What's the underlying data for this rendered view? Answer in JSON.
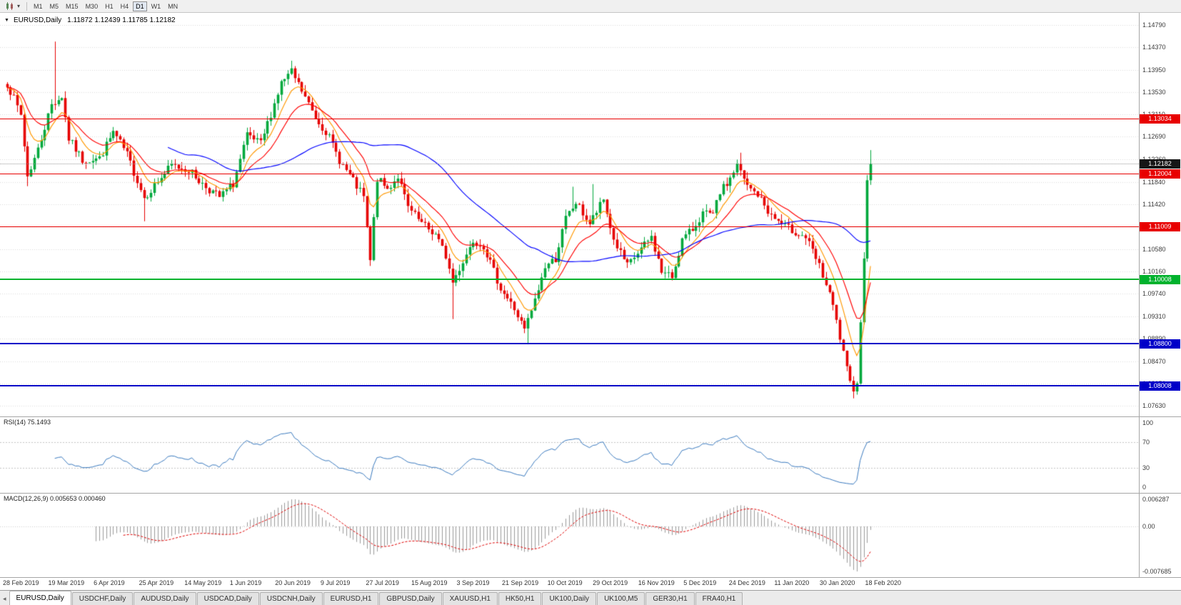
{
  "icons": {
    "dropdown_caret": "▾",
    "one_click_arrow": "▼",
    "tab_scroll_left": "◂"
  },
  "toolbar": {
    "timeframes": [
      "M1",
      "M5",
      "M15",
      "M30",
      "H1",
      "H4",
      "D1",
      "W1",
      "MN"
    ],
    "active_timeframe": "D1"
  },
  "chart_header": {
    "symbol": "EURUSD,Daily",
    "ohlc": "1.11872 1.12439 1.11785 1.12182"
  },
  "price_axis_ticks": [
    "1.14790",
    "1.14370",
    "1.13950",
    "1.13530",
    "1.13110",
    "1.12690",
    "1.12260",
    "1.11840",
    "1.11420",
    "1.11000",
    "1.10580",
    "1.10160",
    "1.09740",
    "1.09310",
    "1.08890",
    "1.08470",
    "1.08050",
    "1.07630"
  ],
  "levels": [
    {
      "label": "1.13034",
      "color": "#e80000",
      "width": 1
    },
    {
      "label": "1.12004",
      "color": "#e80000",
      "width": 1
    },
    {
      "label": "1.11009",
      "color": "#e80000",
      "width": 1
    },
    {
      "label": "1.10008",
      "color": "#00b22d",
      "width": 2
    },
    {
      "label": "1.08800",
      "color": "#0000c8",
      "width": 2
    },
    {
      "label": "1.08008",
      "color": "#0000c8",
      "width": 2
    }
  ],
  "current_price": {
    "label": "1.12182"
  },
  "rsi_panel": {
    "title": "RSI(14) 75.1493",
    "scale": [
      "100",
      "70",
      "30",
      "0"
    ]
  },
  "macd_panel": {
    "title": "MACD(12,26,9) 0.005653 0.000460",
    "scale_top": "0.006287",
    "scale_mid": "0.00",
    "scale_bottom": "-0.007685"
  },
  "date_axis": [
    "28 Feb 2019",
    "19 Mar 2019",
    "6 Apr 2019",
    "25 Apr 2019",
    "14 May 2019",
    "1 Jun 2019",
    "20 Jun 2019",
    "9 Jul 2019",
    "27 Jul 2019",
    "15 Aug 2019",
    "3 Sep 2019",
    "21 Sep 2019",
    "10 Oct 2019",
    "29 Oct 2019",
    "16 Nov 2019",
    "5 Dec 2019",
    "24 Dec 2019",
    "11 Jan 2020",
    "30 Jan 2020",
    "18 Feb 2020"
  ],
  "tabs": {
    "active": "EURUSD,Daily",
    "items": [
      "EURUSD,Daily",
      "USDCHF,Daily",
      "AUDUSD,Daily",
      "USDCAD,Daily",
      "USDCNH,Daily",
      "EURUSD,H1",
      "GBPUSD,Daily",
      "XAUUSD,H1",
      "HK50,H1",
      "UK100,Daily",
      "UK100,M5",
      "GER30,H1",
      "FRA40,H1"
    ],
    "scroll_left_icon": "tab-scroll-left"
  },
  "colors": {
    "bull": "#00a83c",
    "bear": "#e60000",
    "background": "#ffffff",
    "grid": "#dadada",
    "axis_text": "#3a3a3a",
    "badge_current_bg": "#161616",
    "ma_fast": "#ff9800",
    "ma_medium": "#ff0000",
    "ma_slow": "#0000ff",
    "rsi_line": "#3a7abf",
    "macd_histogram": "#9a9a9a",
    "macd_signal": "#e00000"
  },
  "chart_data": {
    "type": "candlestick",
    "symbol": "EURUSD",
    "timeframe": "Daily",
    "title": "EURUSD,Daily 1.11872 1.12439 1.11785 1.12182",
    "last_candle": {
      "open": 1.11872,
      "high": 1.12439,
      "low": 1.11785,
      "close": 1.12182
    },
    "y_axis": {
      "top_price": 1.1502,
      "bottom_price": 1.0743,
      "tick_step": 0.0042
    },
    "candles": 253,
    "close_waypoints": [
      [
        0,
        1.137
      ],
      [
        4,
        1.131
      ],
      [
        6,
        1.1195
      ],
      [
        9,
        1.1245
      ],
      [
        13,
        1.133
      ],
      [
        16,
        1.1345
      ],
      [
        18,
        1.1265
      ],
      [
        22,
        1.1225
      ],
      [
        27,
        1.1228
      ],
      [
        31,
        1.1278
      ],
      [
        35,
        1.1235
      ],
      [
        40,
        1.1155
      ],
      [
        44,
        1.1185
      ],
      [
        48,
        1.1215
      ],
      [
        53,
        1.1207
      ],
      [
        57,
        1.118
      ],
      [
        62,
        1.1155
      ],
      [
        66,
        1.118
      ],
      [
        70,
        1.127
      ],
      [
        74,
        1.1255
      ],
      [
        80,
        1.137
      ],
      [
        83,
        1.139
      ],
      [
        86,
        1.1355
      ],
      [
        90,
        1.1305
      ],
      [
        93,
        1.128
      ],
      [
        97,
        1.1225
      ],
      [
        101,
        1.1185
      ],
      [
        104,
        1.1155
      ],
      [
        106,
        1.1035
      ],
      [
        108,
        1.119
      ],
      [
        111,
        1.117
      ],
      [
        114,
        1.1195
      ],
      [
        117,
        1.1135
      ],
      [
        121,
        1.1105
      ],
      [
        125,
        1.1085
      ],
      [
        128,
        1.1045
      ],
      [
        130,
        1.0995
      ],
      [
        133,
        1.1035
      ],
      [
        136,
        1.1075
      ],
      [
        139,
        1.1065
      ],
      [
        142,
        1.1015
      ],
      [
        144,
        1.0985
      ],
      [
        148,
        1.0945
      ],
      [
        151,
        1.0905
      ],
      [
        154,
        1.096
      ],
      [
        157,
        1.1025
      ],
      [
        160,
        1.104
      ],
      [
        163,
        1.1115
      ],
      [
        166,
        1.1145
      ],
      [
        170,
        1.1105
      ],
      [
        174,
        1.115
      ],
      [
        177,
        1.1075
      ],
      [
        181,
        1.1025
      ],
      [
        184,
        1.105
      ],
      [
        188,
        1.108
      ],
      [
        191,
        1.1015
      ],
      [
        194,
        1.1005
      ],
      [
        197,
        1.1075
      ],
      [
        200,
        1.1095
      ],
      [
        203,
        1.1125
      ],
      [
        206,
        1.112
      ],
      [
        208,
        1.1165
      ],
      [
        210,
        1.118
      ],
      [
        213,
        1.1215
      ],
      [
        216,
        1.1175
      ],
      [
        219,
        1.116
      ],
      [
        223,
        1.112
      ],
      [
        227,
        1.11
      ],
      [
        230,
        1.109
      ],
      [
        233,
        1.108
      ],
      [
        237,
        1.1025
      ],
      [
        239,
        1.099
      ],
      [
        241,
        1.095
      ],
      [
        243,
        1.089
      ],
      [
        245,
        1.083
      ],
      [
        247,
        1.079
      ],
      [
        248,
        1.0805
      ],
      [
        249,
        1.092
      ],
      [
        250,
        1.104
      ],
      [
        251,
        1.11872
      ],
      [
        252,
        1.12182
      ]
    ],
    "wick_extremes": [
      {
        "i": 6,
        "low": 1.1176
      },
      {
        "i": 14,
        "high": 1.1448
      },
      {
        "i": 40,
        "low": 1.111
      },
      {
        "i": 83,
        "high": 1.1412
      },
      {
        "i": 106,
        "low": 1.1026
      },
      {
        "i": 130,
        "low": 1.0926
      },
      {
        "i": 152,
        "low": 1.0879
      },
      {
        "i": 165,
        "high": 1.1175
      },
      {
        "i": 171,
        "high": 1.118
      },
      {
        "i": 214,
        "high": 1.1239
      },
      {
        "i": 247,
        "low": 1.0777
      }
    ],
    "overlays": [
      {
        "name": "ema-fast",
        "period": 8,
        "color": "#ff9800"
      },
      {
        "name": "ema-medium",
        "period": 17,
        "color": "#ff0000"
      },
      {
        "name": "sma-slow",
        "period": 48,
        "color": "#0000ff"
      }
    ],
    "horizontal_levels": [
      1.13034,
      1.12004,
      1.11009,
      1.10008,
      1.088,
      1.08008
    ],
    "rsi": {
      "period": 14,
      "current": 75.1493,
      "levels": [
        70,
        30
      ]
    },
    "macd": {
      "fast": 12,
      "slow": 26,
      "signal": 9,
      "current": 0.005653,
      "signal_current": 0.00046
    }
  }
}
